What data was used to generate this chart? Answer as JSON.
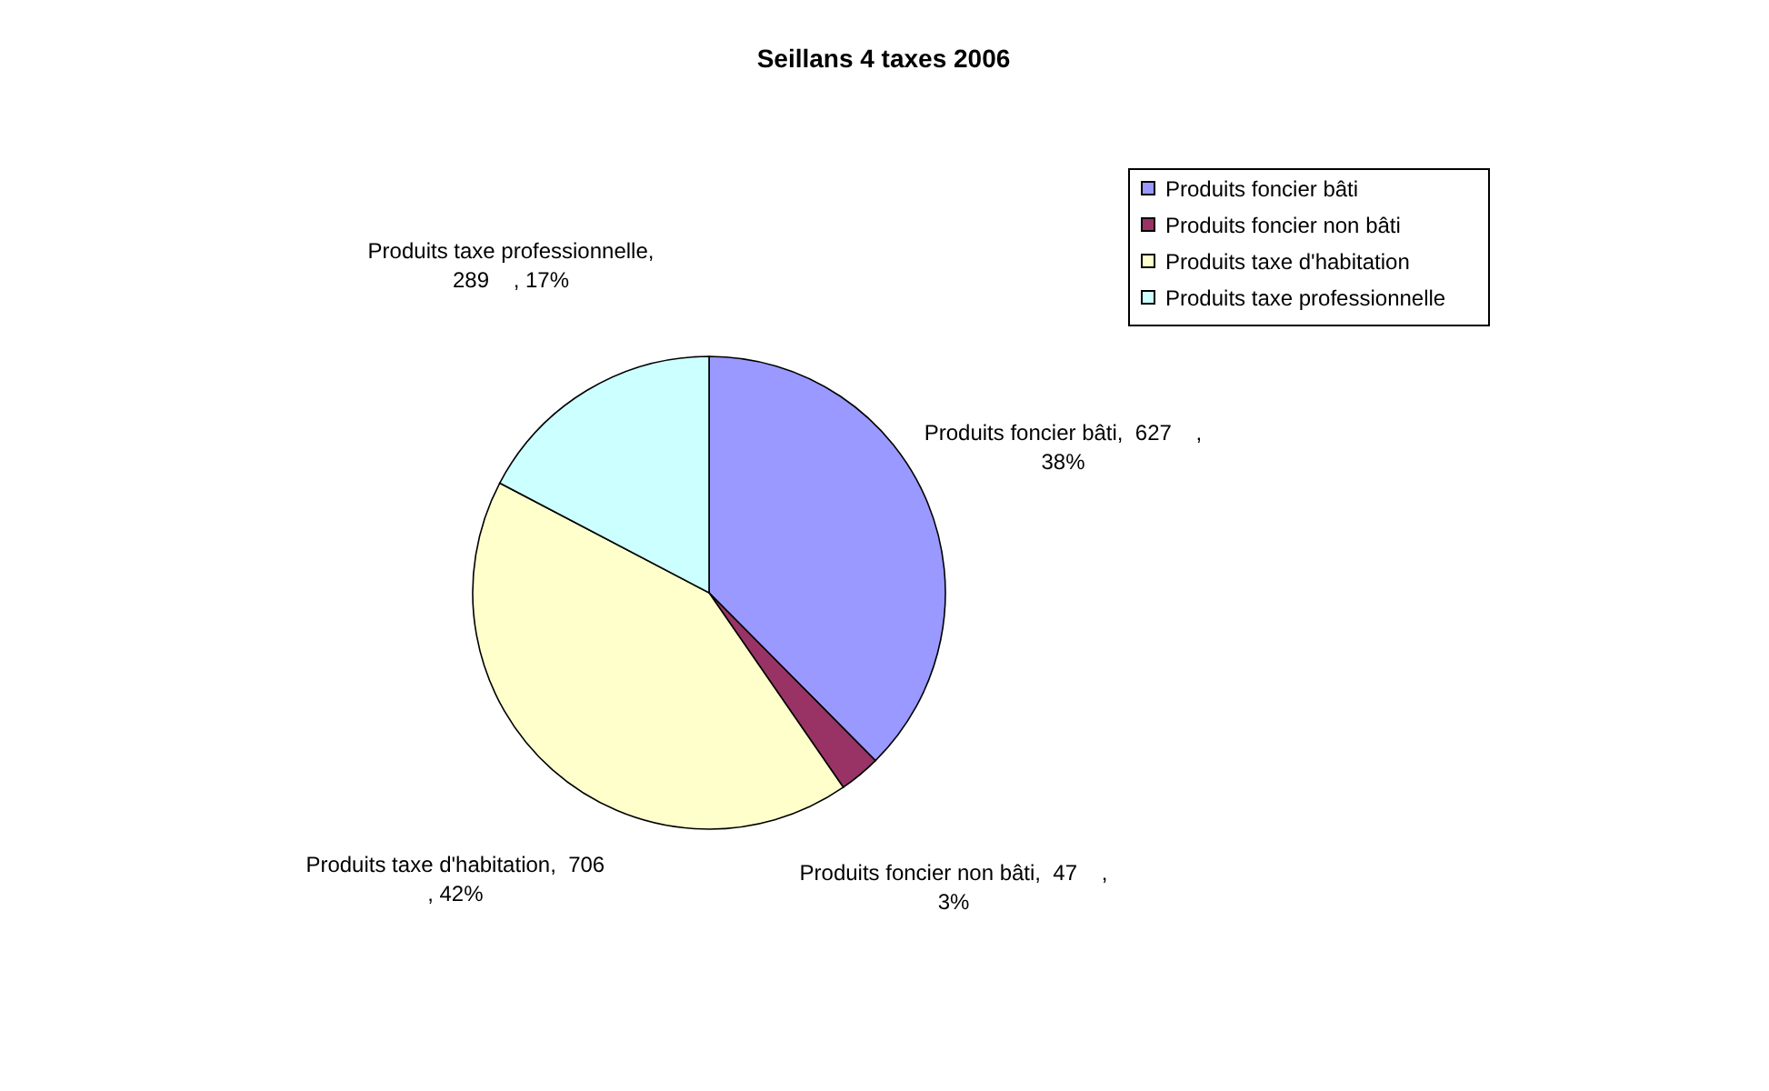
{
  "chart_data": {
    "type": "pie",
    "title": "Seillans 4 taxes 2006",
    "categories": [
      "Produits foncier bâti",
      "Produits foncier non bâti",
      "Produits taxe d'habitation",
      "Produits taxe professionnelle"
    ],
    "values": [
      627,
      47,
      706,
      289
    ],
    "colors": [
      "#9999ff",
      "#993366",
      "#ffffcc",
      "#ccffff"
    ],
    "value_labels": [
      "Produits foncier bâti,  627    ,\n38%",
      "Produits foncier non bâti,  47    ,\n3%",
      "Produits taxe d'habitation,  706\n, 42%",
      "Produits taxe professionnelle,\n289    , 17%"
    ],
    "legend": "top right"
  }
}
